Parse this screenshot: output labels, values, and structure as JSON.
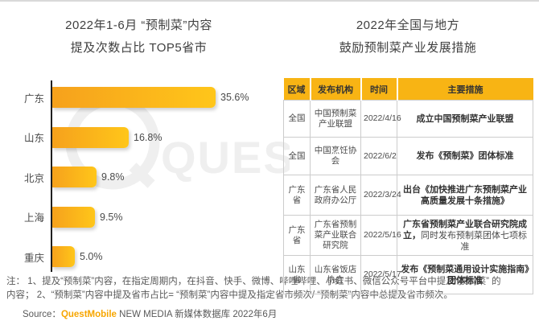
{
  "left_panel": {
    "title_line1": "2022年1-6月 “预制菜”内容",
    "title_line2": "提及次数占比 TOP5省市"
  },
  "chart_data": {
    "type": "bar",
    "orientation": "horizontal",
    "title": "2022年1-6月“预制菜”内容提及次数占比 TOP5省市",
    "categories": [
      "广东",
      "山东",
      "北京",
      "上海",
      "重庆"
    ],
    "values": [
      35.6,
      16.8,
      9.8,
      9.5,
      5.0
    ],
    "value_labels": [
      "35.6%",
      "16.8%",
      "9.8%",
      "9.5%",
      "5.0%"
    ],
    "xlim": [
      0,
      40
    ],
    "grid": "off",
    "legend": "none",
    "bar_color_start": "#F6A11C",
    "bar_color_end": "#FFC61A"
  },
  "right_panel": {
    "title_line1": "2022年全国与地方",
    "title_line2": "鼓励预制菜产业发展措施",
    "table": {
      "headers": [
        "区域",
        "发布机构",
        "时间",
        "主要措施"
      ],
      "rows": [
        {
          "region": "全国",
          "org": "中国预制菜产业联盟",
          "time": "2022/4/16",
          "measure": "成立中国预制菜产业联盟",
          "measure2": ""
        },
        {
          "region": "全国",
          "org": "中国烹饪协会",
          "time": "2022/6/2",
          "measure": "发布《预制菜》团体标准",
          "measure2": ""
        },
        {
          "region": "广东省",
          "org": "广东省人民政府办公厅",
          "time": "2022/3/24",
          "measure": "出台《加快推进广东预制菜产业高质量发展十条措施》",
          "measure2": ""
        },
        {
          "region": "广东省",
          "org": "广东省预制菜产业联合研究院",
          "time": "2022/5/16",
          "measure": "广东省预制菜产业联合研究院成立，",
          "measure2": "同时发布预制菜团体七项标准"
        },
        {
          "region": "山东省",
          "org": "山东省饭店协会",
          "time": "2022/5/17",
          "measure": "发布《预制菜通用设计实施指南》团体标准",
          "measure2": ""
        }
      ]
    }
  },
  "footer": {
    "note_line1": "注： 1、提及“预制菜”内容，在指定周期内，在抖音、快手、微博、哔哩哔哩、小红书、微信公众号平台中提及“预制菜” 的",
    "note_line2": "内容； 2、“预制菜”内容中提及省市占比= “预制菜”内容中提及指定省市频次/ “预制菜”内容中总提及省市频次。",
    "source_prefix": "Source：",
    "source_brand": "QuestMobile",
    "source_suffix": " NEW MEDIA 新媒体数据库 2022年6月"
  },
  "watermark": {
    "text": "QUES"
  },
  "colors": {
    "table_header_bg": "#F8B414",
    "bar_gradient": [
      "#F6A11C",
      "#FFC61A"
    ],
    "brand_orange": "#F7A600",
    "axis": "#1f1f1f"
  }
}
